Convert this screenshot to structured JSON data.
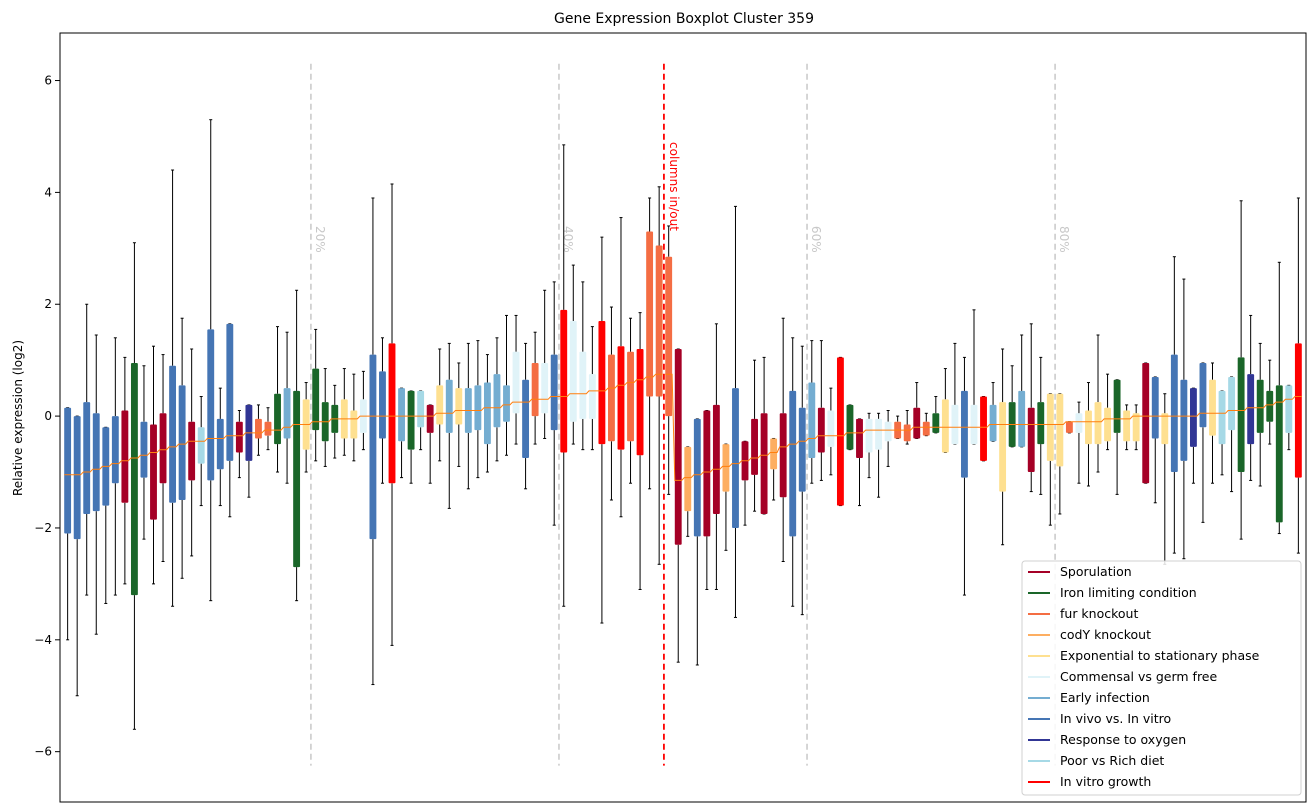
{
  "chart_data": {
    "type": "boxplot",
    "title": "Gene Expression Boxplot Cluster 359",
    "xlabel": "",
    "ylabel": "Relative expression (log2)",
    "ylim": [
      -6.9,
      6.85
    ],
    "yticks": [
      -6,
      -4,
      -2,
      0,
      2,
      4,
      6
    ],
    "grid": false,
    "legend_position": "bottom-right",
    "percent_markers": [
      "20%",
      "40%",
      "60%",
      "80%"
    ],
    "marker_annotation": "columns in/out",
    "marker_color": "#ff0000",
    "percent_marker_color": "#c8c8c8",
    "median_line_color": "#ff7f0e",
    "whisker_color": "#000000",
    "categories": [
      {
        "name": "Sporulation",
        "color": "#a50026"
      },
      {
        "name": "Iron limiting condition",
        "color": "#1a6629"
      },
      {
        "name": "fur knockout",
        "color": "#f46d43"
      },
      {
        "name": "codY knockout",
        "color": "#fdae61"
      },
      {
        "name": "Exponential to stationary phase",
        "color": "#fee090"
      },
      {
        "name": "Commensal vs germ free",
        "color": "#e0f3f8"
      },
      {
        "name": "Early infection",
        "color": "#74add1"
      },
      {
        "name": "In vivo vs. In vitro",
        "color": "#4575b4"
      },
      {
        "name": "Response to oxygen",
        "color": "#313695"
      },
      {
        "name": "Poor vs Rich diet",
        "color": "#a6d9e6"
      },
      {
        "name": "In vitro growth",
        "color": "#ff0000"
      }
    ],
    "boxes": [
      {
        "c": 7,
        "q1": -2.1,
        "q3": 0.15,
        "lo": -4.0,
        "hi": 0.15,
        "med": -1.05
      },
      {
        "c": 7,
        "q1": -2.2,
        "q3": 0.0,
        "lo": -5.0,
        "hi": 0.0,
        "med": -1.05
      },
      {
        "c": 7,
        "q1": -1.75,
        "q3": 0.25,
        "lo": -3.2,
        "hi": 2.0,
        "med": -1.0
      },
      {
        "c": 7,
        "q1": -1.7,
        "q3": 0.05,
        "lo": -3.9,
        "hi": 1.45,
        "med": -0.95
      },
      {
        "c": 7,
        "q1": -1.6,
        "q3": -0.2,
        "lo": -3.35,
        "hi": -0.2,
        "med": -0.9
      },
      {
        "c": 7,
        "q1": -1.2,
        "q3": 0.0,
        "lo": -3.2,
        "hi": 1.4,
        "med": -0.85
      },
      {
        "c": 0,
        "q1": -1.55,
        "q3": 0.1,
        "lo": -3.0,
        "hi": 1.05,
        "med": -0.8
      },
      {
        "c": 1,
        "q1": -3.2,
        "q3": 0.95,
        "lo": -5.6,
        "hi": 3.1,
        "med": -0.75
      },
      {
        "c": 7,
        "q1": -1.1,
        "q3": -0.1,
        "lo": -2.2,
        "hi": 0.9,
        "med": -0.7
      },
      {
        "c": 0,
        "q1": -1.85,
        "q3": -0.15,
        "lo": -3.0,
        "hi": 1.25,
        "med": -0.65
      },
      {
        "c": 0,
        "q1": -1.2,
        "q3": 0.05,
        "lo": -2.6,
        "hi": 1.1,
        "med": -0.6
      },
      {
        "c": 7,
        "q1": -1.55,
        "q3": 0.9,
        "lo": -3.4,
        "hi": 4.4,
        "med": -0.55
      },
      {
        "c": 7,
        "q1": -1.5,
        "q3": 0.55,
        "lo": -2.9,
        "hi": 1.75,
        "med": -0.5
      },
      {
        "c": 0,
        "q1": -1.15,
        "q3": -0.1,
        "lo": -2.5,
        "hi": 1.2,
        "med": -0.45
      },
      {
        "c": 9,
        "q1": -0.85,
        "q3": -0.2,
        "lo": -1.6,
        "hi": 0.35,
        "med": -0.45
      },
      {
        "c": 7,
        "q1": -1.15,
        "q3": 1.55,
        "lo": -3.3,
        "hi": 5.3,
        "med": -0.4
      },
      {
        "c": 7,
        "q1": -0.95,
        "q3": -0.05,
        "lo": -1.6,
        "hi": 0.5,
        "med": -0.4
      },
      {
        "c": 7,
        "q1": -0.8,
        "q3": 1.65,
        "lo": -1.8,
        "hi": 1.65,
        "med": -0.35
      },
      {
        "c": 0,
        "q1": -0.65,
        "q3": -0.1,
        "lo": -1.1,
        "hi": 0.1,
        "med": -0.35
      },
      {
        "c": 8,
        "q1": -0.8,
        "q3": 0.2,
        "lo": -1.45,
        "hi": 0.2,
        "med": -0.3
      },
      {
        "c": 2,
        "q1": -0.4,
        "q3": -0.05,
        "lo": -0.7,
        "hi": 0.2,
        "med": -0.3
      },
      {
        "c": 2,
        "q1": -0.35,
        "q3": -0.1,
        "lo": -0.6,
        "hi": 0.15,
        "med": -0.25
      },
      {
        "c": 1,
        "q1": -0.5,
        "q3": 0.4,
        "lo": -1.0,
        "hi": 1.6,
        "med": -0.25
      },
      {
        "c": 6,
        "q1": -0.4,
        "q3": 0.5,
        "lo": -1.2,
        "hi": 1.5,
        "med": -0.2
      },
      {
        "c": 1,
        "q1": -2.7,
        "q3": 0.45,
        "lo": -3.3,
        "hi": 2.25,
        "med": -0.15
      },
      {
        "c": 4,
        "q1": -0.6,
        "q3": 0.3,
        "lo": -1.0,
        "hi": 0.6,
        "med": -0.15
      },
      {
        "c": 1,
        "q1": -0.25,
        "q3": 0.85,
        "lo": -0.8,
        "hi": 1.55,
        "med": -0.1
      },
      {
        "c": 1,
        "q1": -0.45,
        "q3": 0.25,
        "lo": -0.9,
        "hi": 0.85,
        "med": -0.1
      },
      {
        "c": 1,
        "q1": -0.3,
        "q3": 0.2,
        "lo": -0.75,
        "hi": 0.55,
        "med": -0.05
      },
      {
        "c": 4,
        "q1": -0.4,
        "q3": 0.3,
        "lo": -0.7,
        "hi": 0.85,
        "med": -0.05
      },
      {
        "c": 4,
        "q1": -0.4,
        "q3": 0.1,
        "lo": -0.8,
        "hi": 0.75,
        "med": -0.05
      },
      {
        "c": 5,
        "q1": -0.3,
        "q3": 0.3,
        "lo": -0.6,
        "hi": 0.8,
        "med": 0.0
      },
      {
        "c": 7,
        "q1": -2.2,
        "q3": 1.1,
        "lo": -4.8,
        "hi": 3.9,
        "med": 0.0
      },
      {
        "c": 7,
        "q1": -0.4,
        "q3": 0.8,
        "lo": -1.2,
        "hi": 1.4,
        "med": 0.0
      },
      {
        "c": 10,
        "q1": -1.2,
        "q3": 1.3,
        "lo": -4.1,
        "hi": 4.15,
        "med": 0.0
      },
      {
        "c": 6,
        "q1": -0.45,
        "q3": 0.5,
        "lo": -1.1,
        "hi": 0.5,
        "med": 0.0
      },
      {
        "c": 1,
        "q1": -0.6,
        "q3": 0.45,
        "lo": -1.2,
        "hi": 0.45,
        "med": 0.0
      },
      {
        "c": 9,
        "q1": -0.2,
        "q3": 0.45,
        "lo": -0.6,
        "hi": 0.45,
        "med": 0.0
      },
      {
        "c": 0,
        "q1": -0.3,
        "q3": 0.2,
        "lo": -1.2,
        "hi": 0.2,
        "med": 0.0
      },
      {
        "c": 4,
        "q1": -0.15,
        "q3": 0.55,
        "lo": -0.8,
        "hi": 1.2,
        "med": 0.05
      },
      {
        "c": 6,
        "q1": -0.3,
        "q3": 0.65,
        "lo": -1.65,
        "hi": 1.3,
        "med": 0.05
      },
      {
        "c": 4,
        "q1": -0.15,
        "q3": 0.5,
        "lo": -0.9,
        "hi": 0.95,
        "med": 0.1
      },
      {
        "c": 6,
        "q1": -0.3,
        "q3": 0.5,
        "lo": -1.3,
        "hi": 1.3,
        "med": 0.1
      },
      {
        "c": 6,
        "q1": -0.25,
        "q3": 0.55,
        "lo": -1.1,
        "hi": 1.35,
        "med": 0.1
      },
      {
        "c": 6,
        "q1": -0.5,
        "q3": 0.6,
        "lo": -1.0,
        "hi": 1.1,
        "med": 0.15
      },
      {
        "c": 6,
        "q1": -0.2,
        "q3": 0.75,
        "lo": -0.8,
        "hi": 1.4,
        "med": 0.15
      },
      {
        "c": 6,
        "q1": -0.1,
        "q3": 0.55,
        "lo": -0.7,
        "hi": 1.8,
        "med": 0.2
      },
      {
        "c": 5,
        "q1": 0.05,
        "q3": 1.15,
        "lo": -0.5,
        "hi": 1.8,
        "med": 0.25
      },
      {
        "c": 7,
        "q1": -0.75,
        "q3": 0.65,
        "lo": -1.3,
        "hi": 1.3,
        "med": 0.25
      },
      {
        "c": 2,
        "q1": 0.0,
        "q3": 0.95,
        "lo": -0.5,
        "hi": 1.5,
        "med": 0.3
      },
      {
        "c": 5,
        "q1": 0.05,
        "q3": 0.95,
        "lo": -0.4,
        "hi": 2.25,
        "med": 0.3
      },
      {
        "c": 7,
        "q1": -0.25,
        "q3": 1.1,
        "lo": -1.95,
        "hi": 2.4,
        "med": 0.35
      },
      {
        "c": 10,
        "q1": -0.65,
        "q3": 1.9,
        "lo": -3.4,
        "hi": 4.85,
        "med": 0.35
      },
      {
        "c": 5,
        "q1": -0.1,
        "q3": 1.7,
        "lo": -0.5,
        "hi": 2.7,
        "med": 0.4
      },
      {
        "c": 5,
        "q1": -0.05,
        "q3": 1.15,
        "lo": -0.6,
        "hi": 2.4,
        "med": 0.4
      },
      {
        "c": 5,
        "q1": -0.05,
        "q3": 0.75,
        "lo": -0.6,
        "hi": 1.6,
        "med": 0.45
      },
      {
        "c": 10,
        "q1": -0.5,
        "q3": 1.7,
        "lo": -3.7,
        "hi": 3.2,
        "med": 0.45
      },
      {
        "c": 2,
        "q1": -0.45,
        "q3": 1.1,
        "lo": -1.5,
        "hi": 1.95,
        "med": 0.5
      },
      {
        "c": 10,
        "q1": -0.6,
        "q3": 1.25,
        "lo": -1.8,
        "hi": 3.55,
        "med": 0.55
      },
      {
        "c": 2,
        "q1": -0.45,
        "q3": 1.15,
        "lo": -1.2,
        "hi": 1.75,
        "med": 0.6
      },
      {
        "c": 10,
        "q1": -0.7,
        "q3": 1.2,
        "lo": -3.1,
        "hi": 1.85,
        "med": 0.65
      },
      {
        "c": 2,
        "q1": 0.35,
        "q3": 3.3,
        "lo": -1.3,
        "hi": 3.9,
        "med": 0.7
      },
      {
        "c": 2,
        "q1": 0.35,
        "q3": 3.05,
        "lo": -2.65,
        "hi": 4.1,
        "med": 0.75
      },
      {
        "c": 2,
        "q1": 0.0,
        "q3": 2.85,
        "lo": -1.4,
        "hi": 3.4,
        "med": 0.75
      },
      {
        "c": 0,
        "q1": -2.3,
        "q3": 1.2,
        "lo": -4.4,
        "hi": 1.2,
        "med": -1.15
      },
      {
        "c": 3,
        "q1": -1.7,
        "q3": -0.55,
        "lo": -2.15,
        "hi": -0.55,
        "med": -1.1
      },
      {
        "c": 7,
        "q1": -2.15,
        "q3": -0.05,
        "lo": -4.45,
        "hi": -0.05,
        "med": -1.05
      },
      {
        "c": 0,
        "q1": -2.15,
        "q3": 0.1,
        "lo": -3.1,
        "hi": 0.1,
        "med": -1.0
      },
      {
        "c": 0,
        "q1": -1.75,
        "q3": 0.2,
        "lo": -3.1,
        "hi": 1.65,
        "med": -0.95
      },
      {
        "c": 3,
        "q1": -1.35,
        "q3": -0.5,
        "lo": -2.4,
        "hi": -0.5,
        "med": -0.9
      },
      {
        "c": 7,
        "q1": -2.0,
        "q3": 0.5,
        "lo": -3.6,
        "hi": 3.75,
        "med": -0.85
      },
      {
        "c": 0,
        "q1": -1.15,
        "q3": -0.45,
        "lo": -1.95,
        "hi": -0.45,
        "med": -0.8
      },
      {
        "c": 0,
        "q1": -1.05,
        "q3": -0.05,
        "lo": -1.7,
        "hi": 1.0,
        "med": -0.75
      },
      {
        "c": 0,
        "q1": -1.75,
        "q3": 0.05,
        "lo": -1.75,
        "hi": 1.05,
        "med": -0.7
      },
      {
        "c": 3,
        "q1": -0.95,
        "q3": -0.4,
        "lo": -1.5,
        "hi": -0.4,
        "med": -0.65
      },
      {
        "c": 0,
        "q1": -1.45,
        "q3": 0.05,
        "lo": -2.6,
        "hi": 1.75,
        "med": -0.55
      },
      {
        "c": 7,
        "q1": -2.15,
        "q3": 0.45,
        "lo": -3.4,
        "hi": 1.4,
        "med": -0.5
      },
      {
        "c": 7,
        "q1": -1.35,
        "q3": 0.15,
        "lo": -3.55,
        "hi": 1.25,
        "med": -0.45
      },
      {
        "c": 6,
        "q1": -0.75,
        "q3": 0.6,
        "lo": -1.2,
        "hi": 1.35,
        "med": -0.4
      },
      {
        "c": 0,
        "q1": -0.65,
        "q3": 0.15,
        "lo": -1.15,
        "hi": 1.35,
        "med": -0.35
      },
      {
        "c": 5,
        "q1": -0.55,
        "q3": 0.1,
        "lo": -1.05,
        "hi": 0.5,
        "med": -0.35
      },
      {
        "c": 10,
        "q1": -1.6,
        "q3": 1.05,
        "lo": -1.6,
        "hi": 1.05,
        "med": -0.35
      },
      {
        "c": 1,
        "q1": -0.6,
        "q3": 0.2,
        "lo": -0.6,
        "hi": 0.2,
        "med": -0.3
      },
      {
        "c": 0,
        "q1": -0.75,
        "q3": -0.05,
        "lo": -1.6,
        "hi": -0.05,
        "med": -0.3
      },
      {
        "c": 5,
        "q1": -0.65,
        "q3": -0.05,
        "lo": -1.1,
        "hi": 0.05,
        "med": -0.25
      },
      {
        "c": 5,
        "q1": -0.6,
        "q3": -0.05,
        "lo": -1.45,
        "hi": 0.05,
        "med": -0.25
      },
      {
        "c": 5,
        "q1": -0.45,
        "q3": -0.1,
        "lo": -0.9,
        "hi": 0.1,
        "med": -0.25
      },
      {
        "c": 2,
        "q1": -0.4,
        "q3": -0.1,
        "lo": -0.4,
        "hi": 0.0,
        "med": -0.25
      },
      {
        "c": 2,
        "q1": -0.45,
        "q3": -0.15,
        "lo": -0.5,
        "hi": 0.1,
        "med": -0.25
      },
      {
        "c": 0,
        "q1": -0.4,
        "q3": 0.15,
        "lo": -0.4,
        "hi": 0.6,
        "med": -0.2
      },
      {
        "c": 2,
        "q1": -0.35,
        "q3": -0.1,
        "lo": -0.35,
        "hi": 0.05,
        "med": -0.2
      },
      {
        "c": 1,
        "q1": -0.3,
        "q3": 0.05,
        "lo": -0.3,
        "hi": 0.35,
        "med": -0.2
      },
      {
        "c": 4,
        "q1": -0.65,
        "q3": 0.3,
        "lo": -0.65,
        "hi": 0.85,
        "med": -0.2
      },
      {
        "c": 5,
        "q1": -0.5,
        "q3": 0.2,
        "lo": -0.5,
        "hi": 1.3,
        "med": -0.2
      },
      {
        "c": 7,
        "q1": -1.1,
        "q3": 0.45,
        "lo": -3.2,
        "hi": 1.05,
        "med": -0.2
      },
      {
        "c": 5,
        "q1": -0.5,
        "q3": 0.2,
        "lo": -0.5,
        "hi": 1.9,
        "med": -0.2
      },
      {
        "c": 10,
        "q1": -0.8,
        "q3": 0.35,
        "lo": -0.8,
        "hi": 0.35,
        "med": -0.2
      },
      {
        "c": 6,
        "q1": -0.45,
        "q3": 0.2,
        "lo": -0.45,
        "hi": 0.6,
        "med": -0.15
      },
      {
        "c": 4,
        "q1": -1.35,
        "q3": 0.25,
        "lo": -2.3,
        "hi": 1.2,
        "med": -0.15
      },
      {
        "c": 1,
        "q1": -0.55,
        "q3": 0.25,
        "lo": -0.55,
        "hi": 0.9,
        "med": -0.15
      },
      {
        "c": 6,
        "q1": -0.55,
        "q3": 0.45,
        "lo": -0.55,
        "hi": 1.45,
        "med": -0.15
      },
      {
        "c": 0,
        "q1": -1.0,
        "q3": 0.15,
        "lo": -1.35,
        "hi": 1.65,
        "med": -0.15
      },
      {
        "c": 1,
        "q1": -0.5,
        "q3": 0.25,
        "lo": -1.4,
        "hi": 1.05,
        "med": -0.15
      },
      {
        "c": 4,
        "q1": -0.8,
        "q3": 0.4,
        "lo": -1.95,
        "hi": 0.4,
        "med": -0.15
      },
      {
        "c": 4,
        "q1": -0.9,
        "q3": 0.4,
        "lo": -1.75,
        "hi": 0.4,
        "med": -0.15
      },
      {
        "c": 2,
        "q1": -0.3,
        "q3": -0.1,
        "lo": -0.3,
        "hi": -0.1,
        "med": -0.1
      },
      {
        "c": 5,
        "q1": -0.3,
        "q3": 0.05,
        "lo": -1.2,
        "hi": 0.25,
        "med": -0.1
      },
      {
        "c": 4,
        "q1": -0.5,
        "q3": 0.1,
        "lo": -1.25,
        "hi": 0.6,
        "med": -0.1
      },
      {
        "c": 4,
        "q1": -0.5,
        "q3": 0.25,
        "lo": -1.0,
        "hi": 1.45,
        "med": -0.1
      },
      {
        "c": 4,
        "q1": -0.45,
        "q3": 0.15,
        "lo": -0.6,
        "hi": 0.75,
        "med": -0.05
      },
      {
        "c": 1,
        "q1": -0.3,
        "q3": 0.65,
        "lo": -1.4,
        "hi": 0.65,
        "med": -0.05
      },
      {
        "c": 4,
        "q1": -0.45,
        "q3": 0.1,
        "lo": -0.6,
        "hi": 0.2,
        "med": -0.05
      },
      {
        "c": 4,
        "q1": -0.45,
        "q3": 0.05,
        "lo": -0.6,
        "hi": 0.2,
        "med": 0.0
      },
      {
        "c": 0,
        "q1": -1.2,
        "q3": 0.95,
        "lo": -1.2,
        "hi": 0.95,
        "med": 0.0
      },
      {
        "c": 7,
        "q1": -0.4,
        "q3": 0.7,
        "lo": -1.55,
        "hi": 0.7,
        "med": 0.0
      },
      {
        "c": 4,
        "q1": -0.5,
        "q3": 0.05,
        "lo": -2.65,
        "hi": 0.4,
        "med": 0.0
      },
      {
        "c": 7,
        "q1": -1.0,
        "q3": 1.1,
        "lo": -2.45,
        "hi": 2.85,
        "med": 0.0
      },
      {
        "c": 7,
        "q1": -0.8,
        "q3": 0.65,
        "lo": -2.55,
        "hi": 2.45,
        "med": 0.0
      },
      {
        "c": 8,
        "q1": -0.55,
        "q3": 0.5,
        "lo": -1.2,
        "hi": 0.5,
        "med": 0.0
      },
      {
        "c": 7,
        "q1": -0.2,
        "q3": 0.95,
        "lo": -1.9,
        "hi": 0.95,
        "med": 0.05
      },
      {
        "c": 4,
        "q1": -0.35,
        "q3": 0.65,
        "lo": -1.2,
        "hi": 0.95,
        "med": 0.05
      },
      {
        "c": 9,
        "q1": -0.5,
        "q3": 0.45,
        "lo": -1.05,
        "hi": 0.45,
        "med": 0.05
      },
      {
        "c": 9,
        "q1": -0.25,
        "q3": 0.7,
        "lo": -1.35,
        "hi": 0.7,
        "med": 0.1
      },
      {
        "c": 1,
        "q1": -1.0,
        "q3": 1.05,
        "lo": -2.2,
        "hi": 3.85,
        "med": 0.1
      },
      {
        "c": 8,
        "q1": -0.5,
        "q3": 0.75,
        "lo": -1.15,
        "hi": 1.8,
        "med": 0.15
      },
      {
        "c": 1,
        "q1": -0.3,
        "q3": 0.65,
        "lo": -1.25,
        "hi": 1.3,
        "med": 0.15
      },
      {
        "c": 1,
        "q1": -0.1,
        "q3": 0.45,
        "lo": -0.5,
        "hi": 1.0,
        "med": 0.2
      },
      {
        "c": 1,
        "q1": -1.9,
        "q3": 0.55,
        "lo": -2.1,
        "hi": 2.75,
        "med": 0.25
      },
      {
        "c": 9,
        "q1": -0.3,
        "q3": 0.55,
        "lo": -0.6,
        "hi": 0.55,
        "med": 0.3
      },
      {
        "c": 10,
        "q1": -1.1,
        "q3": 1.3,
        "lo": -2.45,
        "hi": 3.9,
        "med": 0.35
      }
    ]
  }
}
